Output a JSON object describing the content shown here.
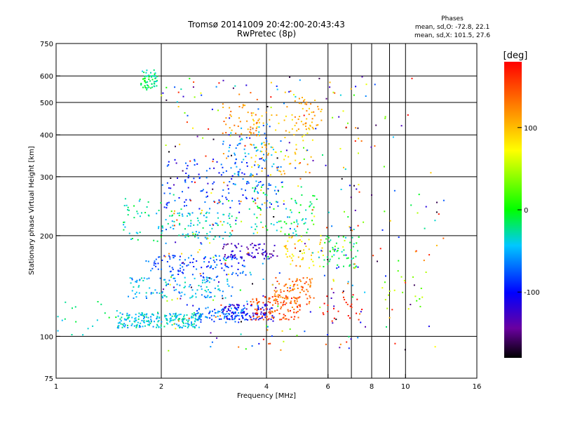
{
  "chart_data": {
    "type": "scatter",
    "title": "Tromsø 20141009 20:42:00-20:43:43",
    "subtitle": "RwPretec (8p)",
    "xlabel": "Frequency [MHz]",
    "ylabel": "Stationary phase Virtual Height [km]",
    "x_scale": "log",
    "y_scale": "log",
    "xlim": [
      1,
      16
    ],
    "ylim": [
      75,
      750
    ],
    "x_ticks": [
      1,
      2,
      4,
      6,
      8,
      10,
      16
    ],
    "y_ticks": [
      75,
      100,
      200,
      300,
      400,
      500,
      600,
      750
    ],
    "grid": true,
    "stats": {
      "heading": "Phases",
      "line_o": "mean, sd,O: -72.8, 22.1",
      "line_x": "mean, sd,X: 101.5, 27.6"
    },
    "colorbar": {
      "label": "[deg]",
      "range": [
        -180,
        180
      ],
      "ticks": [
        100,
        0,
        -100
      ],
      "colormap": "rainbow"
    },
    "clusters": [
      {
        "x": [
          1.75,
          1.95
        ],
        "y": [
          545,
          625
        ],
        "phase": -20,
        "n": 60
      },
      {
        "x": [
          1.5,
          2.6
        ],
        "y": [
          106,
          118
        ],
        "phase": -40,
        "n": 220
      },
      {
        "x": [
          2.5,
          3.5
        ],
        "y": [
          110,
          122
        ],
        "phase": -70,
        "n": 90
      },
      {
        "x": [
          3.0,
          4.2
        ],
        "y": [
          112,
          125
        ],
        "phase": -110,
        "n": 100
      },
      {
        "x": [
          3.6,
          5.0
        ],
        "y": [
          112,
          132
        ],
        "phase": 150,
        "n": 110
      },
      {
        "x": [
          4.2,
          5.5
        ],
        "y": [
          125,
          150
        ],
        "phase": 135,
        "n": 80
      },
      {
        "x": [
          1.6,
          3.2
        ],
        "y": [
          130,
          150
        ],
        "phase": -50,
        "n": 120
      },
      {
        "x": [
          1.8,
          3.5
        ],
        "y": [
          150,
          175
        ],
        "phase": -80,
        "n": 120
      },
      {
        "x": [
          2.0,
          3.2
        ],
        "y": [
          195,
          235
        ],
        "phase": -35,
        "n": 90
      },
      {
        "x": [
          3.0,
          4.3
        ],
        "y": [
          170,
          190
        ],
        "phase": -130,
        "n": 70
      },
      {
        "x": [
          4.5,
          5.9
        ],
        "y": [
          160,
          200
        ],
        "phase": 85,
        "n": 50
      },
      {
        "x": [
          3.5,
          5.5
        ],
        "y": [
          200,
          280
        ],
        "phase": -20,
        "n": 80
      },
      {
        "x": [
          2.0,
          4.5
        ],
        "y": [
          240,
          340
        ],
        "phase": -85,
        "n": 120
      },
      {
        "x": [
          3.0,
          4.2
        ],
        "y": [
          280,
          440
        ],
        "phase": -60,
        "n": 80
      },
      {
        "x": [
          3.6,
          5.5
        ],
        "y": [
          300,
          470
        ],
        "phase": 100,
        "n": 90
      },
      {
        "x": [
          4.8,
          5.8
        ],
        "y": [
          420,
          520
        ],
        "phase": 110,
        "n": 35
      },
      {
        "x": [
          3.0,
          3.8
        ],
        "y": [
          400,
          500
        ],
        "phase": 120,
        "n": 40
      },
      {
        "x": [
          1.55,
          2.0
        ],
        "y": [
          190,
          260
        ],
        "phase": -30,
        "n": 40
      },
      {
        "x": [
          5.8,
          7.4
        ],
        "y": [
          160,
          200
        ],
        "phase": -15,
        "n": 50
      },
      {
        "x": [
          5.8,
          7.6
        ],
        "y": [
          110,
          140
        ],
        "phase": 170,
        "n": 25
      },
      {
        "x": [
          8.5,
          11.5
        ],
        "y": [
          120,
          160
        ],
        "phase": 40,
        "n": 20
      },
      {
        "x": [
          1.0,
          1.5
        ],
        "y": [
          100,
          130
        ],
        "phase": -25,
        "n": 20
      },
      {
        "x": [
          2.0,
          7.5
        ],
        "y": [
          90,
          600
        ],
        "phase": 0,
        "n": 350,
        "scatter": true
      },
      {
        "x": [
          7.0,
          13.0
        ],
        "y": [
          90,
          650
        ],
        "phase": 60,
        "n": 60,
        "scatter": true
      }
    ]
  }
}
